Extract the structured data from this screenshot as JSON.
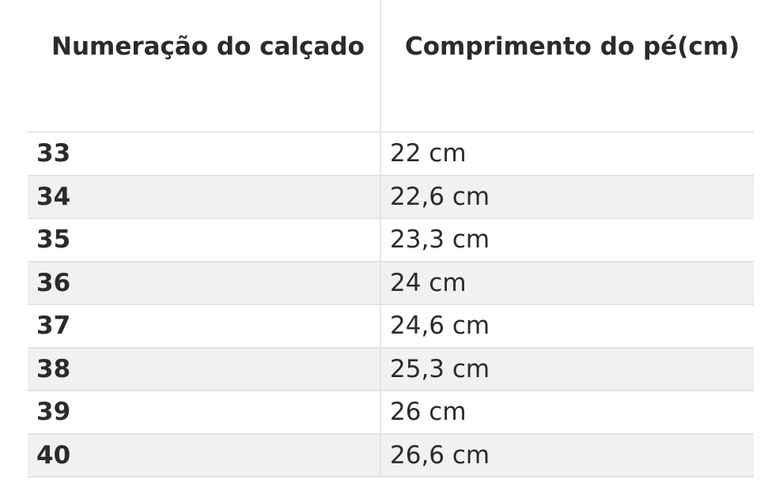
{
  "table": {
    "headers": [
      "Numeração do calçado",
      "Comprimento do pé(cm)"
    ],
    "rows": [
      [
        "33",
        "22 cm"
      ],
      [
        "34",
        "22,6 cm"
      ],
      [
        "35",
        "23,3 cm"
      ],
      [
        "36",
        "24 cm"
      ],
      [
        "37",
        "24,6 cm"
      ],
      [
        "38",
        "25,3 cm"
      ],
      [
        "39",
        "26 cm"
      ],
      [
        "40",
        "26,6 cm"
      ]
    ]
  }
}
